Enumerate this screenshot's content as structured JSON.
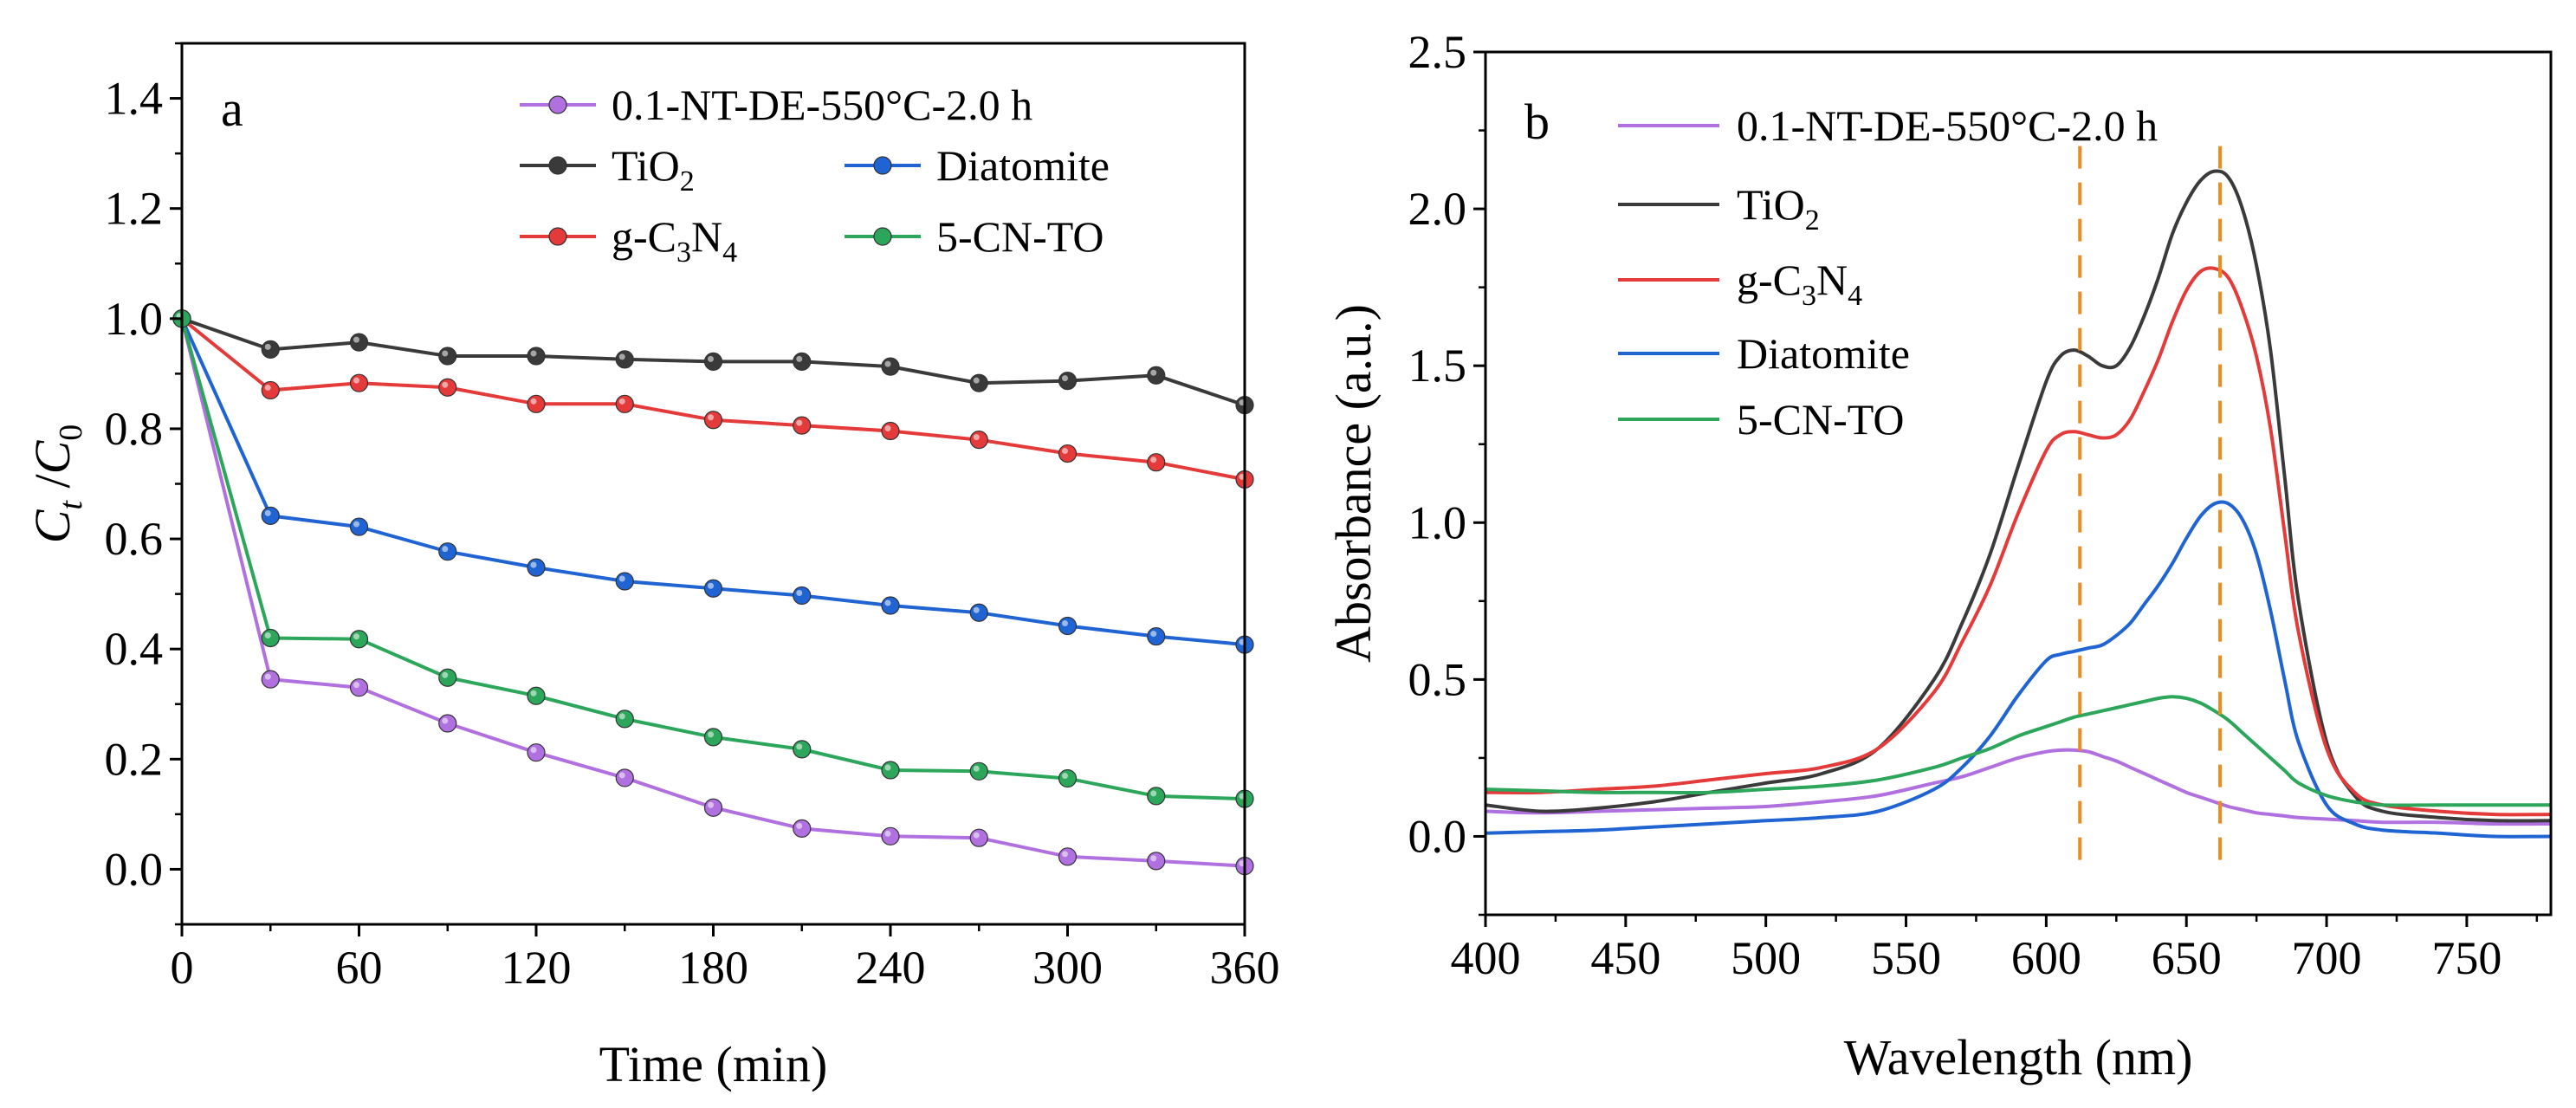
{
  "chart_data": [
    {
      "type": "line",
      "panel_label": "a",
      "xlabel": "Time (min)",
      "ylabel": {
        "main": "C",
        "sub_t": "t",
        "sep": "/",
        "main2": "C",
        "sub_0": "0"
      },
      "xlim": [
        0,
        360
      ],
      "ylim": [
        -0.1,
        1.5
      ],
      "xticks": [
        0,
        60,
        120,
        180,
        240,
        300,
        360
      ],
      "yticks": [
        0.0,
        0.2,
        0.4,
        0.6,
        0.8,
        1.0,
        1.2,
        1.4
      ],
      "xtick_labels": [
        "0",
        "60",
        "120",
        "180",
        "240",
        "300",
        "360"
      ],
      "ytick_labels": [
        "0.0",
        "0.2",
        "0.4",
        "0.6",
        "0.8",
        "1.0",
        "1.2",
        "1.4"
      ],
      "legend_position": "top-right",
      "x": [
        0,
        30,
        60,
        90,
        120,
        150,
        180,
        210,
        240,
        270,
        300,
        330,
        360
      ],
      "series": [
        {
          "name": "0.1-NT-DE-550°C-2.0 h",
          "legend_parts": [
            "0.1-NT-DE-550°C-2.0 h"
          ],
          "color": "#b070e0",
          "values": [
            1.0,
            0.345,
            0.33,
            0.265,
            0.212,
            0.166,
            0.112,
            0.074,
            0.06,
            0.057,
            0.023,
            0.015,
            0.006
          ]
        },
        {
          "name": "TiO2",
          "legend_parts": [
            "TiO",
            "2",
            ""
          ],
          "color": "#3a3a3a",
          "values": [
            1.0,
            0.944,
            0.957,
            0.932,
            0.932,
            0.926,
            0.922,
            0.922,
            0.913,
            0.883,
            0.887,
            0.897,
            0.843
          ]
        },
        {
          "name": "Diatomite",
          "legend_parts": [
            "Diatomite"
          ],
          "color": "#1f64d2",
          "values": [
            1.0,
            0.642,
            0.622,
            0.577,
            0.548,
            0.523,
            0.51,
            0.497,
            0.479,
            0.466,
            0.442,
            0.423,
            0.408
          ]
        },
        {
          "name": "g-C3N4",
          "legend_parts": [
            "g-C",
            "3",
            "N",
            "4"
          ],
          "color": "#e43a3a",
          "values": [
            1.0,
            0.87,
            0.883,
            0.875,
            0.845,
            0.845,
            0.816,
            0.806,
            0.796,
            0.78,
            0.755,
            0.739,
            0.708
          ]
        },
        {
          "name": "5-CN-TO",
          "legend_parts": [
            "5-CN-TO"
          ],
          "color": "#2ca65a",
          "values": [
            1.0,
            0.42,
            0.418,
            0.348,
            0.315,
            0.273,
            0.24,
            0.218,
            0.18,
            0.178,
            0.165,
            0.133,
            0.128
          ]
        }
      ]
    },
    {
      "type": "line",
      "panel_label": "b",
      "xlabel": "Wavelength (nm)",
      "ylabel": "Absorbance (a.u.)",
      "xlim": [
        400,
        780
      ],
      "ylim": [
        -0.25,
        2.5
      ],
      "xticks": [
        400,
        450,
        500,
        550,
        600,
        650,
        700,
        750
      ],
      "yticks": [
        0.0,
        0.5,
        1.0,
        1.5,
        2.0,
        2.5
      ],
      "xtick_labels": [
        "400",
        "450",
        "500",
        "550",
        "600",
        "650",
        "700",
        "750"
      ],
      "ytick_labels": [
        "0.0",
        "0.5",
        "1.0",
        "1.5",
        "2.0",
        "2.5"
      ],
      "legend_position": "top-left",
      "reference_lines": [
        {
          "x": 612,
          "color": "#f08a1c",
          "style": "dashed"
        },
        {
          "x": 662,
          "color": "#f08a1c",
          "style": "dashed"
        }
      ],
      "x": [
        400,
        420,
        440,
        460,
        480,
        500,
        520,
        540,
        560,
        570,
        580,
        590,
        600,
        605,
        610,
        615,
        620,
        625,
        630,
        635,
        640,
        645,
        650,
        655,
        660,
        665,
        670,
        675,
        680,
        685,
        690,
        700,
        710,
        720,
        740,
        760,
        780
      ],
      "series": [
        {
          "name": "0.1-NT-DE-550°C-2.0 h",
          "legend_parts": [
            "0.1-NT-DE-550°C-2.0 h"
          ],
          "color": "#b070e0",
          "values": [
            0.08,
            0.075,
            0.08,
            0.085,
            0.09,
            0.095,
            0.11,
            0.13,
            0.17,
            0.19,
            0.22,
            0.25,
            0.27,
            0.275,
            0.275,
            0.27,
            0.255,
            0.24,
            0.22,
            0.2,
            0.18,
            0.16,
            0.14,
            0.125,
            0.11,
            0.095,
            0.085,
            0.075,
            0.07,
            0.065,
            0.06,
            0.055,
            0.05,
            0.045,
            0.045,
            0.04,
            0.04
          ]
        },
        {
          "name": "TiO2",
          "legend_parts": [
            "TiO",
            "2",
            ""
          ],
          "color": "#3a3a3a",
          "values": [
            0.1,
            0.08,
            0.09,
            0.11,
            0.14,
            0.17,
            0.2,
            0.28,
            0.5,
            0.68,
            0.9,
            1.18,
            1.45,
            1.53,
            1.55,
            1.53,
            1.5,
            1.5,
            1.56,
            1.66,
            1.78,
            1.92,
            2.02,
            2.09,
            2.12,
            2.1,
            2.0,
            1.82,
            1.55,
            1.15,
            0.75,
            0.3,
            0.13,
            0.08,
            0.06,
            0.05,
            0.05
          ]
        },
        {
          "name": "g-C3N4",
          "legend_parts": [
            "g-C",
            "3",
            "N",
            "4"
          ],
          "color": "#e43a3a",
          "values": [
            0.14,
            0.14,
            0.15,
            0.16,
            0.18,
            0.2,
            0.22,
            0.28,
            0.46,
            0.62,
            0.8,
            1.03,
            1.23,
            1.28,
            1.29,
            1.28,
            1.27,
            1.28,
            1.33,
            1.42,
            1.52,
            1.64,
            1.74,
            1.8,
            1.81,
            1.78,
            1.68,
            1.53,
            1.3,
            0.97,
            0.65,
            0.28,
            0.14,
            0.1,
            0.08,
            0.07,
            0.07
          ]
        },
        {
          "name": "Diatomite",
          "legend_parts": [
            "Diatomite"
          ],
          "color": "#1f64d2",
          "values": [
            0.01,
            0.015,
            0.02,
            0.03,
            0.04,
            0.05,
            0.06,
            0.08,
            0.15,
            0.22,
            0.32,
            0.45,
            0.56,
            0.58,
            0.59,
            0.6,
            0.61,
            0.64,
            0.68,
            0.74,
            0.8,
            0.87,
            0.95,
            1.02,
            1.06,
            1.06,
            1.01,
            0.9,
            0.72,
            0.5,
            0.3,
            0.1,
            0.04,
            0.02,
            0.01,
            0.0,
            0.0
          ]
        },
        {
          "name": "5-CN-TO",
          "legend_parts": [
            "5-CN-TO"
          ],
          "color": "#2ca65a",
          "values": [
            0.15,
            0.145,
            0.14,
            0.14,
            0.14,
            0.15,
            0.16,
            0.18,
            0.22,
            0.25,
            0.28,
            0.32,
            0.35,
            0.365,
            0.38,
            0.39,
            0.4,
            0.41,
            0.42,
            0.43,
            0.44,
            0.445,
            0.44,
            0.425,
            0.4,
            0.37,
            0.33,
            0.29,
            0.25,
            0.21,
            0.17,
            0.13,
            0.11,
            0.1,
            0.1,
            0.1,
            0.1
          ]
        }
      ]
    }
  ]
}
